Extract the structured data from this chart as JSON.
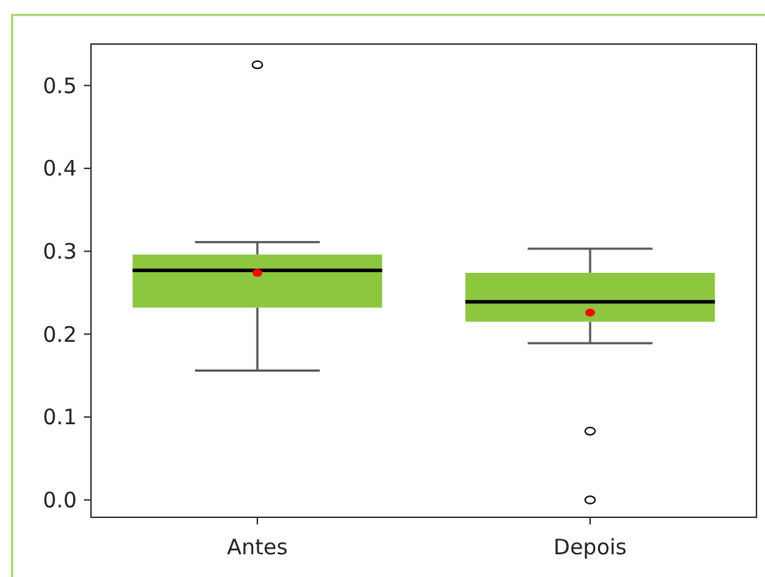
{
  "chart_data": {
    "type": "box",
    "categories": [
      "Antes",
      "Depois"
    ],
    "color": "#8dc63f",
    "ylim": [
      -0.021,
      0.55
    ],
    "yticks": [
      {
        "value": 0,
        "label": "0.0"
      },
      {
        "value": 0.1,
        "label": "0.1"
      },
      {
        "value": 0.2,
        "label": "0.2"
      },
      {
        "value": 0.3,
        "label": "0.3"
      },
      {
        "value": 0.4,
        "label": "0.4"
      },
      {
        "value": 0.5,
        "label": "0.5"
      }
    ],
    "grid": false,
    "boxes": [
      {
        "low": 0.156,
        "q1": 0.232,
        "median": 0.277,
        "q3": 0.296,
        "high": 0.311,
        "mean": 0.274,
        "outliers": [
          0.525
        ]
      },
      {
        "low": 0.189,
        "q1": 0.215,
        "median": 0.239,
        "q3": 0.274,
        "high": 0.303,
        "mean": 0.226,
        "outliers": [
          0.083,
          0
        ]
      }
    ]
  }
}
